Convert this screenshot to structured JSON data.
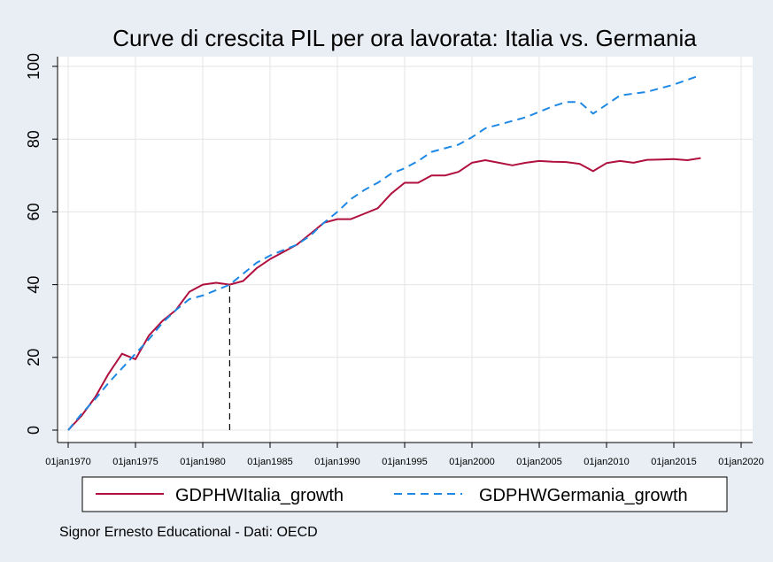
{
  "chart_data": {
    "type": "line",
    "title": "Curve di crescita PIL per ora lavorata: Italia vs. Germania",
    "xlabel": "",
    "ylabel": "",
    "xlim": [
      1970,
      2020
    ],
    "ylim": [
      0,
      100
    ],
    "x_ticks": [
      1970,
      1975,
      1980,
      1985,
      1990,
      1995,
      2000,
      2005,
      2010,
      2015,
      2020
    ],
    "x_tick_labels": [
      "01jan1970",
      "01jan1975",
      "01jan1980",
      "01jan1985",
      "01jan1990",
      "01jan1995",
      "01jan2000",
      "01jan2005",
      "01jan2010",
      "01jan2015",
      "01jan2020"
    ],
    "y_ticks": [
      0,
      20,
      40,
      60,
      80,
      100
    ],
    "y_tick_labels": [
      "0",
      "20",
      "40",
      "60",
      "80",
      "100"
    ],
    "x": [
      1970,
      1971,
      1972,
      1973,
      1974,
      1975,
      1976,
      1977,
      1978,
      1979,
      1980,
      1981,
      1982,
      1983,
      1984,
      1985,
      1986,
      1987,
      1988,
      1989,
      1990,
      1991,
      1992,
      1993,
      1994,
      1995,
      1996,
      1997,
      1998,
      1999,
      2000,
      2001,
      2002,
      2003,
      2004,
      2005,
      2006,
      2007,
      2008,
      2009,
      2010,
      2011,
      2012,
      2013,
      2014,
      2015,
      2016,
      2017
    ],
    "series": [
      {
        "name": "GDPHWItalia_growth",
        "color": "#b0103e",
        "dash": "solid",
        "values": [
          0,
          4,
          9,
          15.5,
          21,
          19.5,
          26,
          30,
          33,
          38,
          40,
          40.5,
          40,
          41,
          44.5,
          47,
          49,
          51,
          54,
          57,
          58,
          58,
          59.5,
          61,
          65,
          68,
          68,
          70,
          70,
          71,
          73.5,
          74.2,
          73.5,
          72.8,
          73.5,
          74,
          73.8,
          73.7,
          73.2,
          71.2,
          73.4,
          74,
          73.5,
          74.3,
          74.4,
          74.5,
          74.2,
          74.8
        ]
      },
      {
        "name": "GDPHWGermania_growth",
        "color": "#1e88e5",
        "dash": "dashed",
        "values": [
          0,
          4.5,
          8.5,
          13,
          17,
          21,
          25,
          29.5,
          33,
          36,
          37,
          38.5,
          40,
          43,
          46,
          48,
          49.5,
          51,
          53.5,
          57,
          60,
          63.5,
          66,
          68,
          70.5,
          72,
          74,
          76.5,
          77.5,
          78.5,
          80.5,
          83,
          84,
          85,
          86,
          87.5,
          89,
          90.2,
          90.2,
          87,
          89.5,
          92,
          92.5,
          93,
          94,
          95,
          96.3,
          97.6
        ]
      }
    ],
    "annotations": [
      {
        "type": "vline",
        "x": 1982,
        "y_from": 0,
        "y_to": 40,
        "style": "dashed",
        "color": "#000000"
      }
    ],
    "grid": true,
    "legend_position": "bottom",
    "note": "Signor Ernesto Educational - Dati: OECD"
  }
}
